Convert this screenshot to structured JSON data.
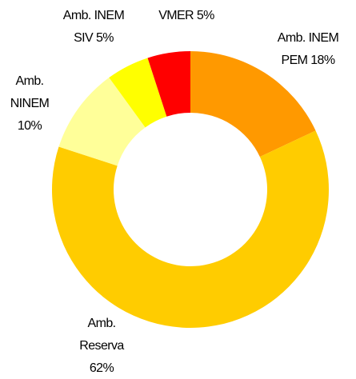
{
  "chart_data": {
    "type": "donut",
    "categories": [
      "Amb. INEM PEM",
      "Amb. Reserva",
      "Amb. NINEM",
      "Amb. INEM SIV",
      "VMER"
    ],
    "values": [
      18,
      62,
      10,
      5,
      5
    ],
    "value_labels": [
      "18%",
      "62%",
      "10%",
      "5%",
      "5%"
    ],
    "colors": [
      "#FF9900",
      "#FFCC00",
      "#FFFF99",
      "#FFFF00",
      "#FF0000"
    ]
  }
}
